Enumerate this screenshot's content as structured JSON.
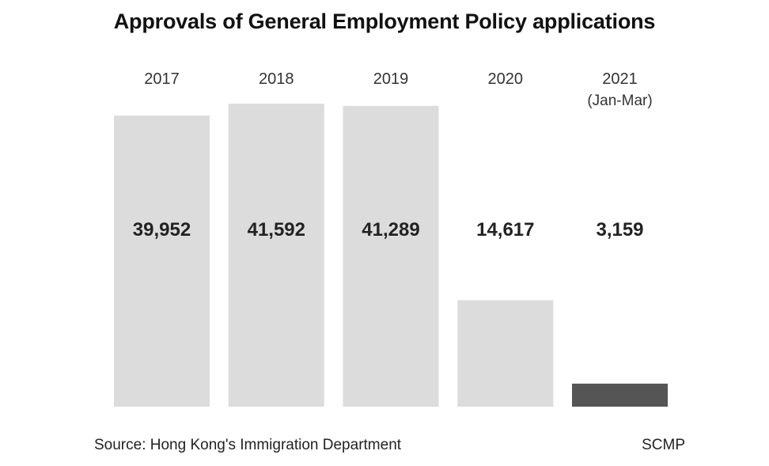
{
  "chart_data": {
    "type": "bar",
    "title": "Approvals of General Employment Policy applications",
    "categories": [
      "2017",
      "2018",
      "2019",
      "2020",
      "2021"
    ],
    "category_notes": [
      "",
      "",
      "",
      "",
      "(Jan-Mar)"
    ],
    "values": [
      39952,
      41592,
      41289,
      14617,
      3159
    ],
    "value_labels": [
      "39,952",
      "41,592",
      "41,289",
      "14,617",
      "3,159"
    ],
    "ylim": [
      0,
      41592
    ],
    "xlabel": "",
    "ylabel": "",
    "grid": false,
    "legend": "none",
    "colors": {
      "bar": "#dcdcdd",
      "highlight_bar": "#555555"
    },
    "highlight_index": 4
  },
  "footer": {
    "source": "Source: Hong Kong's Immigration Department",
    "credit": "SCMP"
  }
}
